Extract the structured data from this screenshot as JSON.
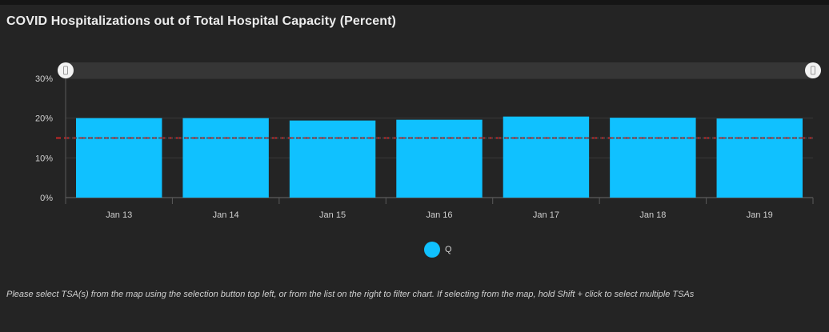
{
  "title": "COVID Hospitalizations out of Total Hospital Capacity (Percent)",
  "footnote": "Please select TSA(s) from the map using the selection button top left, or from the list on the right to filter chart. If selecting from the map, hold Shift + click to select multiple TSAs",
  "chart_data": {
    "type": "bar",
    "categories": [
      "Jan 13",
      "Jan 14",
      "Jan 15",
      "Jan 16",
      "Jan 17",
      "Jan 18",
      "Jan 19"
    ],
    "series": [
      {
        "name": "Q",
        "values": [
          20,
          20,
          19.4,
          19.6,
          20.4,
          20.1,
          19.9
        ]
      }
    ],
    "yticks": [
      "0%",
      "10%",
      "20%",
      "30%"
    ],
    "ylim": [
      0,
      30
    ],
    "threshold": {
      "value": 15
    },
    "grid": true,
    "legend_position": "bottom-center",
    "colors": {
      "bar": "#10c1ff",
      "threshold": "#c62828",
      "background": "#242424"
    }
  }
}
